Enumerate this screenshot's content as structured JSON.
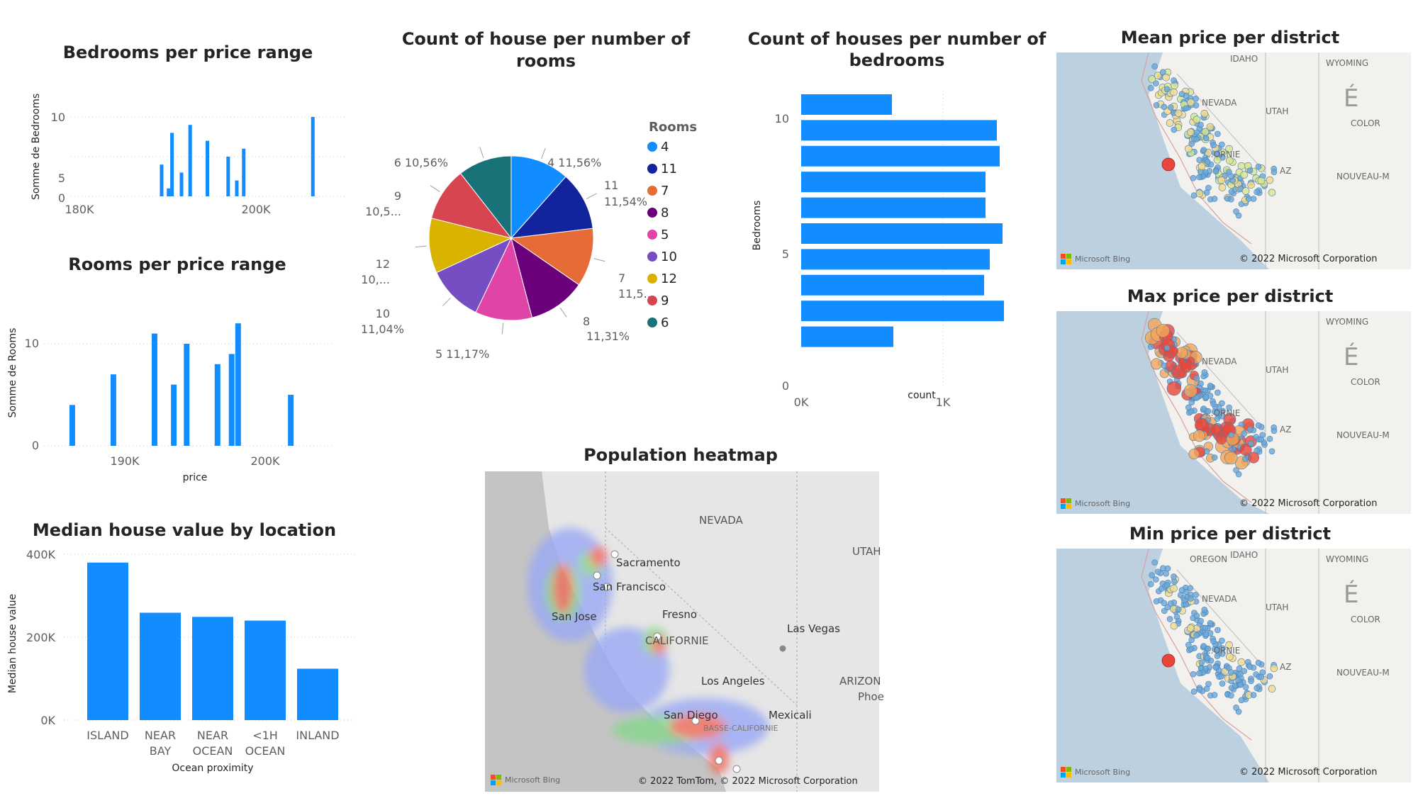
{
  "charts": {
    "bedrooms_price": {
      "title": "Bedrooms per price range",
      "ylabel": "Somme de Bedrooms",
      "yticks": [
        "0",
        "5",
        "10"
      ],
      "xticks": [
        "180K",
        "200K"
      ]
    },
    "rooms_price": {
      "title": "Rooms per price range",
      "ylabel": "Somme de Rooms",
      "xlabel": "price",
      "yticks": [
        "0",
        "10"
      ],
      "xticks": [
        "190K",
        "200K"
      ]
    },
    "median_value": {
      "title": "Median house value by location",
      "ylabel": "Median house value",
      "xlabel": "Ocean proximity",
      "yticks": [
        "0K",
        "200K",
        "400K"
      ],
      "cat_line1": [
        "ISLAND",
        "NEAR",
        "NEAR",
        "<1H",
        "INLAND"
      ],
      "cat_line2": [
        "",
        "BAY",
        "OCEAN",
        "OCEAN",
        ""
      ]
    },
    "rooms_pie": {
      "title": "Count of house per number of rooms",
      "legend_title": "Rooms",
      "slice_labels": [
        "4 11,56%",
        "11",
        "11,54%",
        "7",
        "11,5...",
        "8",
        "11,31%",
        "5 11,17%",
        "10",
        "11,04%",
        "12",
        "10,...",
        "9",
        "10,5...",
        "6 10,56%"
      ]
    },
    "bedrooms_count": {
      "title_line1": "Count of houses per number of",
      "title_line2": "bedrooms",
      "ylabel": "Bedrooms",
      "xlabel": "count",
      "yticks": [
        "10",
        "5",
        "0"
      ],
      "xticks": [
        "0K",
        "1K"
      ]
    }
  },
  "chart_data": [
    {
      "type": "bar",
      "title": "Bedrooms per price range",
      "ylabel": "Somme de Bedrooms",
      "xlim": [
        178000,
        210000
      ],
      "ylim": [
        0,
        10
      ],
      "x": [
        188500,
        189300,
        189700,
        190800,
        191800,
        193800,
        196200,
        197200,
        198000,
        206000
      ],
      "values": [
        4,
        1,
        8,
        3,
        9,
        7,
        5,
        2,
        6,
        10
      ],
      "color": "#118DFF",
      "grid": true
    },
    {
      "type": "bar",
      "title": "Rooms per price range",
      "ylabel": "Somme de Rooms",
      "xlabel": "price",
      "xlim": [
        182500,
        205000
      ],
      "ylim": [
        0,
        14
      ],
      "x": [
        184700,
        187900,
        191100,
        192600,
        193600,
        196000,
        197100,
        197600,
        201700
      ],
      "values": [
        4,
        7,
        11,
        6,
        10,
        8,
        9,
        12,
        5
      ],
      "color": "#118DFF",
      "grid": true
    },
    {
      "type": "bar",
      "title": "Median house value by location",
      "xlabel": "Ocean proximity",
      "ylabel": "Median house value",
      "categories": [
        "ISLAND",
        "NEAR BAY",
        "NEAR OCEAN",
        "<1H OCEAN",
        "INLAND"
      ],
      "values": [
        380000,
        259000,
        249000,
        240000,
        124000
      ],
      "ylim": [
        0,
        400000
      ],
      "color": "#118DFF"
    },
    {
      "type": "pie",
      "title": "Count of house per number of rooms",
      "legend_title": "Rooms",
      "legend_position": "right",
      "categories": [
        "4",
        "11",
        "7",
        "8",
        "5",
        "10",
        "12",
        "9",
        "6"
      ],
      "values": [
        11.56,
        11.54,
        11.5,
        11.31,
        11.17,
        11.04,
        10.8,
        10.52,
        10.56
      ],
      "colors": [
        "#118DFF",
        "#12239E",
        "#E66C37",
        "#6B007B",
        "#E044A7",
        "#744EC2",
        "#D9B300",
        "#D64550",
        "#197278"
      ]
    },
    {
      "type": "bar",
      "orientation": "horizontal",
      "title": "Count of houses per number of bedrooms",
      "ylabel": "Bedrooms",
      "xlabel": "count",
      "categories": [
        10,
        9,
        8,
        7,
        6,
        5,
        4,
        3,
        2,
        1
      ],
      "values": [
        640,
        1380,
        1400,
        1300,
        1300,
        1420,
        1330,
        1290,
        1430,
        650
      ],
      "xlim": [
        0,
        1500
      ],
      "color": "#118DFF"
    }
  ],
  "maps": {
    "heatmap": {
      "title": "Population heatmap",
      "labels": [
        "NEVADA",
        "UTAH",
        "Sacramento",
        "San Francisco",
        "San Jose",
        "Fresno",
        "CALIFORNIE",
        "Las Vegas",
        "Los Angeles",
        "ARIZON",
        "Phoe",
        "San Diego",
        "Mexicali",
        "BASSE-CALIFORNIE"
      ],
      "bing": "Microsoft Bing",
      "copyright": "© 2022 TomTom, © 2022 Microsoft Corporation"
    },
    "mean_district": {
      "title": "Mean price per district",
      "labels": [
        "IDAHO",
        "WYOMING",
        "NEVADA",
        "UTAH",
        "É",
        "COLOR",
        "...ORNIE",
        "AZ",
        "NOUVEAU-M"
      ],
      "bing": "Microsoft Bing",
      "copyright": "© 2022 Microsoft Corporation"
    },
    "max_district": {
      "title": "Max price per district",
      "labels": [
        "WYOMING",
        "NEVADA",
        "UTAH",
        "É",
        "COLOR",
        "...ORNIE",
        "AZ",
        "NOUVEAU-M"
      ],
      "bing": "Microsoft Bing",
      "copyright": "© 2022 Microsoft Corporation"
    },
    "min_district": {
      "title": "Min price per district",
      "labels": [
        "OREGON",
        "IDAHO",
        "WYOMING",
        "NEVADA",
        "UTAH",
        "É",
        "COLOR",
        "...ORNIE",
        "AZ",
        "NOUVEAU-M"
      ],
      "bing": "Microsoft Bing",
      "copyright": "© 2022 Microsoft Corporation"
    }
  }
}
